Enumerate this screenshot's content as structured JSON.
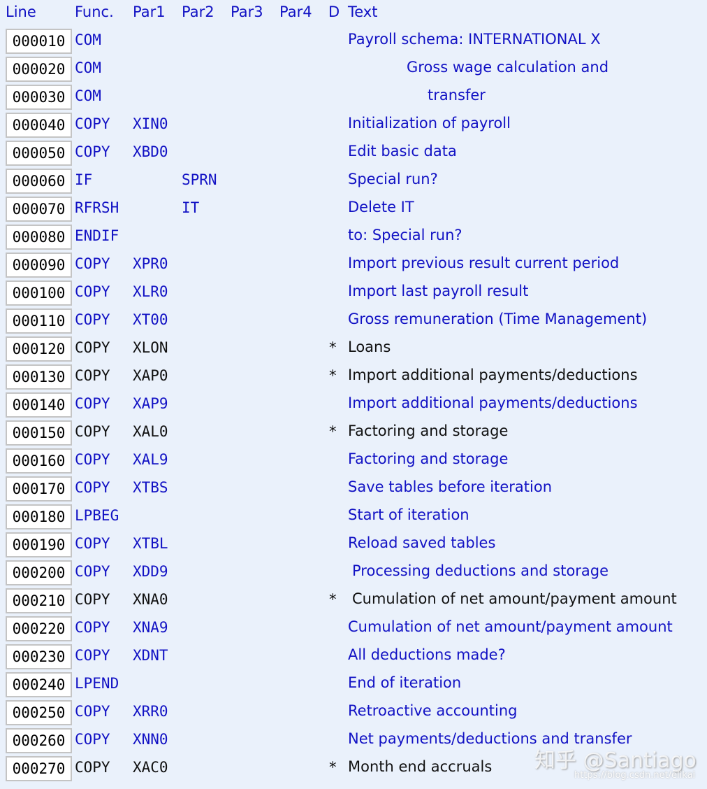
{
  "header": {
    "line": "Line",
    "func": "Func.",
    "par1": "Par1",
    "par2": "Par2",
    "par3": "Par3",
    "par4": "Par4",
    "d": "D",
    "text": "Text"
  },
  "colors": {
    "background": "#eaf1fb",
    "active": "#1212c4",
    "inactive": "#111111"
  },
  "rows": [
    {
      "line": "000010",
      "func": "COM",
      "par1": "",
      "par2": "",
      "d": "",
      "text": "Payroll schema: INTERNATIONAL X",
      "active": true
    },
    {
      "line": "000020",
      "func": "COM",
      "par1": "",
      "par2": "",
      "d": "",
      "text": "Gross wage calculation and",
      "active": true
    },
    {
      "line": "000030",
      "func": "COM",
      "par1": "",
      "par2": "",
      "d": "",
      "text": "transfer",
      "active": true
    },
    {
      "line": "000040",
      "func": "COPY",
      "par1": "XIN0",
      "par2": "",
      "d": "",
      "text": "Initialization of payroll",
      "active": true
    },
    {
      "line": "000050",
      "func": "COPY",
      "par1": "XBD0",
      "par2": "",
      "d": "",
      "text": "Edit basic data",
      "active": true
    },
    {
      "line": "000060",
      "func": "IF",
      "par1": "",
      "par2": "SPRN",
      "d": "",
      "text": "Special run?",
      "active": true
    },
    {
      "line": "000070",
      "func": "RFRSH",
      "par1": "",
      "par2": "IT",
      "d": "",
      "text": "Delete IT",
      "active": true
    },
    {
      "line": "000080",
      "func": "ENDIF",
      "par1": "",
      "par2": "",
      "d": "",
      "text": "to: Special run?",
      "active": true
    },
    {
      "line": "000090",
      "func": "COPY",
      "par1": "XPR0",
      "par2": "",
      "d": "",
      "text": "Import previous result current period",
      "active": true
    },
    {
      "line": "000100",
      "func": "COPY",
      "par1": "XLR0",
      "par2": "",
      "d": "",
      "text": "Import last payroll result",
      "active": true
    },
    {
      "line": "000110",
      "func": "COPY",
      "par1": "XT00",
      "par2": "",
      "d": "",
      "text": "Gross remuneration (Time Management)",
      "active": true
    },
    {
      "line": "000120",
      "func": "COPY",
      "par1": "XLON",
      "par2": "",
      "d": "*",
      "text": "Loans",
      "active": false
    },
    {
      "line": "000130",
      "func": "COPY",
      "par1": "XAP0",
      "par2": "",
      "d": "*",
      "text": "Import additional payments/deductions",
      "active": false
    },
    {
      "line": "000140",
      "func": "COPY",
      "par1": "XAP9",
      "par2": "",
      "d": "",
      "text": "Import additional payments/deductions",
      "active": true
    },
    {
      "line": "000150",
      "func": "COPY",
      "par1": "XAL0",
      "par2": "",
      "d": "*",
      "text": "Factoring and storage",
      "active": false
    },
    {
      "line": "000160",
      "func": "COPY",
      "par1": "XAL9",
      "par2": "",
      "d": "",
      "text": "Factoring and storage",
      "active": true
    },
    {
      "line": "000170",
      "func": "COPY",
      "par1": "XTBS",
      "par2": "",
      "d": "",
      "text": "Save tables before iteration",
      "active": true
    },
    {
      "line": "000180",
      "func": "LPBEG",
      "par1": "",
      "par2": "",
      "d": "",
      "text": "Start of iteration",
      "active": true
    },
    {
      "line": "000190",
      "func": "COPY",
      "par1": "XTBL",
      "par2": "",
      "d": "",
      "text": "Reload saved tables",
      "active": true
    },
    {
      "line": "000200",
      "func": "COPY",
      "par1": "XDD9",
      "par2": "",
      "d": "",
      "text": "Processing deductions and storage",
      "active": true
    },
    {
      "line": "000210",
      "func": "COPY",
      "par1": "XNA0",
      "par2": "",
      "d": "*",
      "text": "Cumulation of net amount/payment amount",
      "active": false
    },
    {
      "line": "000220",
      "func": "COPY",
      "par1": "XNA9",
      "par2": "",
      "d": "",
      "text": "Cumulation of net amount/payment amount",
      "active": true
    },
    {
      "line": "000230",
      "func": "COPY",
      "par1": "XDNT",
      "par2": "",
      "d": "",
      "text": "All deductions made?",
      "active": true
    },
    {
      "line": "000240",
      "func": "LPEND",
      "par1": "",
      "par2": "",
      "d": "",
      "text": "End of iteration",
      "active": true
    },
    {
      "line": "000250",
      "func": "COPY",
      "par1": "XRR0",
      "par2": "",
      "d": "",
      "text": "Retroactive accounting",
      "active": true
    },
    {
      "line": "000260",
      "func": "COPY",
      "par1": "XNN0",
      "par2": "",
      "d": "",
      "text": "Net payments/deductions and transfer",
      "active": true
    },
    {
      "line": "000270",
      "func": "COPY",
      "par1": "XAC0",
      "par2": "",
      "d": "*",
      "text": "Month end accruals",
      "active": false
    }
  ],
  "watermark": {
    "main": "知乎 @Santiago",
    "url": "https://blog.csdn.net/elikai"
  }
}
